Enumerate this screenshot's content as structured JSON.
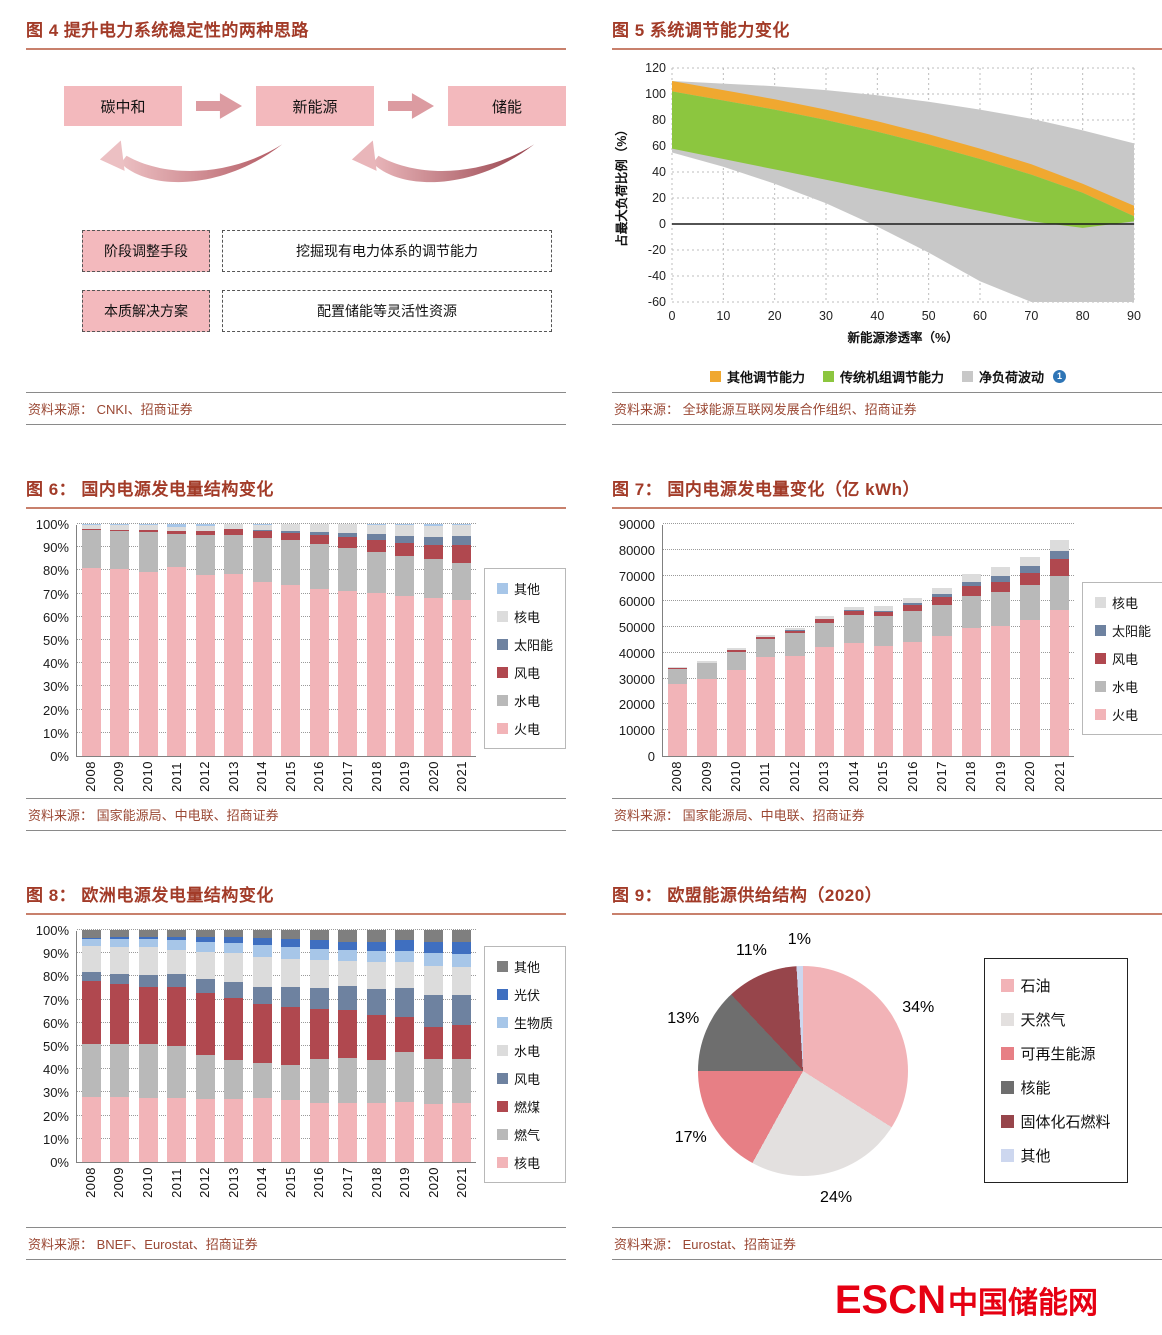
{
  "page": {
    "footer": {
      "brand": "ESCN",
      "brand_suffix": "中国储能网",
      "color": "#e60012"
    }
  },
  "figures": {
    "fig4": {
      "title": "图 4 提升电力系统稳定性的两种思路",
      "source": "资料来源： CNKI、招商证券",
      "flow_boxes": [
        "碳中和",
        "新能源",
        "储能"
      ],
      "rows": [
        {
          "label": "阶段调整手段",
          "content": "挖掘现有电力体系的调节能力"
        },
        {
          "label": "本质解决方案",
          "content": "配置储能等灵活性资源"
        }
      ]
    },
    "fig5": {
      "title": "图 5 系统调节能力变化",
      "source": "资料来源： 全球能源互联网发展合作组织、招商证券"
    },
    "fig6": {
      "title": "图 6： 国内电源发电量结构变化",
      "source": "资料来源： 国家能源局、中电联、招商证券"
    },
    "fig7": {
      "title": "图 7： 国内电源发电量变化（亿 kWh）",
      "source": "资料来源： 国家能源局、中电联、招商证券"
    },
    "fig8": {
      "title": "图 8： 欧洲电源发电量结构变化",
      "source": "资料来源： BNEF、Eurostat、招商证券"
    },
    "fig9": {
      "title": "图 9： 欧盟能源供给结构（2020）",
      "source": "资料来源： Eurostat、招商证券"
    }
  },
  "chart_data": [
    {
      "id": "fig5",
      "type": "area",
      "title": "系统调节能力变化",
      "xlabel": "新能源渗透率（%）",
      "ylabel": "占最大负荷比例（%）",
      "xlim": [
        0,
        90
      ],
      "ylim": [
        -60,
        120
      ],
      "xticks": [
        0,
        10,
        20,
        30,
        40,
        50,
        60,
        70,
        80,
        90
      ],
      "yticks": [
        -60,
        -40,
        -20,
        0,
        20,
        40,
        60,
        80,
        100,
        120
      ],
      "x": [
        0,
        10,
        20,
        30,
        40,
        50,
        60,
        70,
        80,
        90
      ],
      "bands": [
        {
          "name": "净负荷波动",
          "color": "#c8c8c8",
          "upper": [
            110,
            108,
            106,
            103,
            99,
            94,
            88,
            81,
            72,
            62
          ],
          "lower": [
            55,
            44,
            31,
            16,
            -2,
            -22,
            -44,
            -60,
            -60,
            -60
          ]
        },
        {
          "name": "其他调节能力",
          "color": "#f0a830",
          "upper": [
            110,
            103,
            96,
            88,
            79,
            69,
            58,
            46,
            31,
            14
          ],
          "lower": [
            102,
            95,
            88,
            80,
            71,
            61,
            50,
            38,
            24,
            6
          ]
        },
        {
          "name": "传统机组调节能力",
          "color": "#8cc63f",
          "upper": [
            102,
            95,
            88,
            80,
            71,
            61,
            50,
            38,
            24,
            6
          ],
          "lower": [
            58,
            50,
            42,
            34,
            26,
            18,
            10,
            2,
            -3,
            2
          ]
        }
      ],
      "zero_line": 0,
      "legend": [
        {
          "name": "其他调节能力",
          "color": "#f0a830"
        },
        {
          "name": "传统机组调节能力",
          "color": "#8cc63f"
        },
        {
          "name": "净负荷波动",
          "color": "#c8c8c8",
          "note": "1",
          "note_color": "#2e75b6"
        }
      ],
      "legend_position": "bottom",
      "grid": true
    },
    {
      "id": "fig6",
      "type": "bar",
      "subtype": "stacked_percent",
      "title": "国内电源发电量结构变化",
      "categories": [
        "2008",
        "2009",
        "2010",
        "2011",
        "2012",
        "2013",
        "2014",
        "2015",
        "2016",
        "2017",
        "2018",
        "2019",
        "2020",
        "2021"
      ],
      "ymax": 100,
      "yticks": [
        0,
        10,
        20,
        30,
        40,
        50,
        60,
        70,
        80,
        90,
        100
      ],
      "percent": true,
      "series": [
        {
          "name": "火电",
          "color": "#f2b4b8",
          "values": [
            81.0,
            80.6,
            79.2,
            81.5,
            78.1,
            78.3,
            75.2,
            73.7,
            71.8,
            71.1,
            70.4,
            68.9,
            67.9,
            67.4
          ]
        },
        {
          "name": "水电",
          "color": "#b9b9b9",
          "values": [
            16.4,
            16.2,
            17.2,
            14.0,
            17.0,
            16.8,
            18.9,
            19.4,
            19.6,
            18.6,
            17.6,
            17.4,
            17.0,
            15.9
          ]
        },
        {
          "name": "风电",
          "color": "#b0484f",
          "values": [
            0.4,
            0.7,
            1.2,
            1.5,
            2.0,
            2.6,
            2.8,
            3.2,
            4.0,
            4.8,
            5.2,
            5.5,
            6.1,
            7.8
          ]
        },
        {
          "name": "太阳能",
          "color": "#6e82a0",
          "values": [
            0.0,
            0.0,
            0.0,
            0.1,
            0.1,
            0.2,
            0.4,
            0.7,
            1.1,
            1.8,
            2.5,
            3.1,
            3.4,
            3.9
          ]
        },
        {
          "name": "核电",
          "color": "#dcdcdc",
          "values": [
            2.0,
            1.9,
            1.8,
            1.8,
            2.0,
            2.1,
            2.3,
            3.0,
            3.5,
            3.7,
            4.1,
            4.8,
            4.7,
            4.8
          ]
        },
        {
          "name": "其他",
          "color": "#a7c6e8",
          "values": [
            0.2,
            0.6,
            0.6,
            1.1,
            0.8,
            0.0,
            0.4,
            0.0,
            0.0,
            0.0,
            0.2,
            0.3,
            0.9,
            0.2
          ]
        }
      ],
      "legend_top_down": [
        "其他",
        "核电",
        "太阳能",
        "风电",
        "水电",
        "火电"
      ],
      "legend_position": "right",
      "grid": true
    },
    {
      "id": "fig7",
      "type": "bar",
      "subtype": "stacked",
      "title": "国内电源发电量变化（亿 kWh）",
      "categories": [
        "2008",
        "2009",
        "2010",
        "2011",
        "2012",
        "2013",
        "2014",
        "2015",
        "2016",
        "2017",
        "2018",
        "2019",
        "2020",
        "2021"
      ],
      "ymax": 90000,
      "yticks": [
        0,
        10000,
        20000,
        30000,
        40000,
        50000,
        60000,
        70000,
        80000,
        90000
      ],
      "percent": false,
      "series": [
        {
          "name": "火电",
          "color": "#f2b4b8",
          "values": [
            28030,
            29828,
            33319,
            38337,
            38928,
            42470,
            44001,
            42842,
            44371,
            46627,
            49794,
            50465,
            52799,
            56463
          ]
        },
        {
          "name": "水电",
          "color": "#b9b9b9",
          "values": [
            5852,
            6156,
            7222,
            6989,
            8721,
            9203,
            10729,
            11303,
            11815,
            11979,
            12329,
            13021,
            13553,
            13401
          ]
        },
        {
          "name": "风电",
          "color": "#b0484f",
          "values": [
            131,
            276,
            494,
            741,
            1030,
            1412,
            1598,
            1858,
            2409,
            3057,
            3660,
            4057,
            4665,
            6526
          ]
        },
        {
          "name": "太阳能",
          "color": "#6e82a0",
          "values": [
            2,
            4,
            10,
            30,
            70,
            150,
            280,
            450,
            710,
            1200,
            1800,
            2250,
            2650,
            3270
          ]
        },
        {
          "name": "核电",
          "color": "#dcdcdc",
          "values": [
            692,
            701,
            747,
            872,
            983,
            1116,
            1332,
            1714,
            2132,
            2481,
            2944,
            3484,
            3662,
            4075
          ]
        }
      ],
      "legend_top_down": [
        "核电",
        "太阳能",
        "风电",
        "水电",
        "火电"
      ],
      "legend_position": "right",
      "grid": true
    },
    {
      "id": "fig8",
      "type": "bar",
      "subtype": "stacked_percent",
      "title": "欧洲电源发电量结构变化",
      "categories": [
        "2008",
        "2009",
        "2010",
        "2011",
        "2012",
        "2013",
        "2014",
        "2015",
        "2016",
        "2017",
        "2018",
        "2019",
        "2020",
        "2021"
      ],
      "ymax": 100,
      "yticks": [
        0,
        10,
        20,
        30,
        40,
        50,
        60,
        70,
        80,
        90,
        100
      ],
      "percent": true,
      "series": [
        {
          "name": "核电",
          "color": "#f2b4b8",
          "values": [
            28,
            28,
            27.5,
            27.5,
            27,
            27,
            27.5,
            26.5,
            25.5,
            25.5,
            25.5,
            26,
            25,
            25.5
          ]
        },
        {
          "name": "燃气",
          "color": "#b9b9b9",
          "values": [
            23,
            23,
            23.5,
            22.5,
            19,
            17,
            15,
            15.5,
            19,
            19.5,
            18.5,
            21.5,
            19.5,
            19
          ]
        },
        {
          "name": "燃煤",
          "color": "#b0484f",
          "values": [
            27,
            25.5,
            24.5,
            25.5,
            27,
            26.5,
            25.5,
            25,
            21.5,
            20.5,
            19.5,
            15,
            13.5,
            14.5
          ]
        },
        {
          "name": "风电",
          "color": "#6e82a0",
          "values": [
            4,
            4.5,
            5,
            5.5,
            6,
            7,
            7.5,
            8.5,
            9,
            10.5,
            11,
            12.5,
            14,
            13
          ]
        },
        {
          "name": "水电",
          "color": "#dcdcdc",
          "values": [
            11,
            11.5,
            12,
            10.5,
            11.5,
            12.5,
            13,
            12,
            12,
            10.5,
            11.5,
            11,
            12.5,
            12
          ]
        },
        {
          "name": "生物质",
          "color": "#a7c6e8",
          "values": [
            3,
            3.5,
            3.5,
            4,
            4.5,
            4.5,
            5,
            5,
            5,
            5,
            5,
            5,
            5.5,
            5.5
          ]
        },
        {
          "name": "光伏",
          "color": "#3f6fc0",
          "values": [
            0.5,
            1,
            1,
            1.5,
            2,
            2.5,
            3,
            3.5,
            3.5,
            3.5,
            4,
            4.5,
            5,
            5.5
          ]
        },
        {
          "name": "其他",
          "color": "#7f7f7f",
          "values": [
            3.5,
            3,
            3,
            3,
            3,
            3,
            3.5,
            4,
            4.5,
            5,
            5,
            4.5,
            5,
            5
          ]
        }
      ],
      "legend_top_down": [
        "其他",
        "光伏",
        "生物质",
        "水电",
        "风电",
        "燃煤",
        "燃气",
        "核电"
      ],
      "legend_position": "right",
      "grid": true
    },
    {
      "id": "fig9",
      "type": "pie",
      "title": "欧盟能源供给结构（2020）",
      "slices": [
        {
          "name": "石油",
          "value": 34,
          "color": "#f2b3b7"
        },
        {
          "name": "天然气",
          "value": 24,
          "color": "#e3e0df"
        },
        {
          "name": "可再生能源",
          "value": 17,
          "color": "#e77f85"
        },
        {
          "name": "核能",
          "value": 13,
          "color": "#6e6e6e"
        },
        {
          "name": "固体化石燃料",
          "value": 11,
          "color": "#97454b"
        },
        {
          "name": "其他",
          "value": 1,
          "color": "#cdd7ef"
        }
      ],
      "label_format": "percent",
      "legend_position": "right"
    }
  ]
}
